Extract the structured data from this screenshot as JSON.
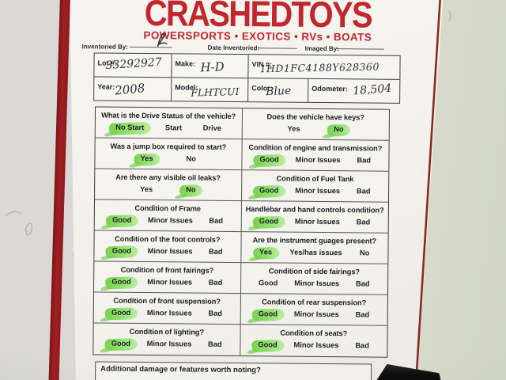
{
  "brand": {
    "logo": "CRASHEDTOYS",
    "tagline": "POWERSPORTS • EXOTICS • RVs • BOATS"
  },
  "meta": {
    "inventoried_by": "Inventoried By:",
    "date_inventoried": "Date Inventoried:",
    "imaged_by": "Imaged By:"
  },
  "info": {
    "lot": {
      "label": "Lot #:",
      "value": "33292927"
    },
    "make": {
      "label": "Make:",
      "value": "H-D"
    },
    "vin": {
      "label": "VIN #:",
      "value": "1HD1FC4188Y628360"
    },
    "year": {
      "label": "Year:",
      "value": "2008"
    },
    "model": {
      "label": "Model:",
      "value": "FLHTCUI"
    },
    "color": {
      "label": "Color:",
      "value": "Blue"
    },
    "odometer": {
      "label": "Odometer:",
      "value": "18,504"
    }
  },
  "questions": [
    {
      "left": {
        "q": "What is the Drive Status of the vehicle?",
        "options": [
          {
            "label": "No Start",
            "hl": true
          },
          {
            "label": "Start",
            "hl": false
          },
          {
            "label": "Drive",
            "hl": false
          }
        ]
      },
      "right": {
        "q": "Does the vehicle have keys?",
        "options": [
          {
            "label": "Yes",
            "hl": false
          },
          {
            "label": "No",
            "hl": true
          }
        ]
      }
    },
    {
      "left": {
        "q": "Was a jump box required to start?",
        "options": [
          {
            "label": "Yes",
            "hl": true
          },
          {
            "label": "No",
            "hl": false
          }
        ]
      },
      "right": {
        "q": "Condition of engine and transmission?",
        "options": [
          {
            "label": "Good",
            "hl": true
          },
          {
            "label": "Minor Issues",
            "hl": false
          },
          {
            "label": "Bad",
            "hl": false
          }
        ]
      }
    },
    {
      "left": {
        "q": "Are there any visible oil leaks?",
        "options": [
          {
            "label": "Yes",
            "hl": false
          },
          {
            "label": "No",
            "hl": true
          }
        ]
      },
      "right": {
        "q": "Condition of Fuel Tank",
        "options": [
          {
            "label": "Good",
            "hl": true
          },
          {
            "label": "Minor Issues",
            "hl": false
          },
          {
            "label": "Bad",
            "hl": false
          }
        ]
      }
    },
    {
      "left": {
        "q": "Condition of Frame",
        "options": [
          {
            "label": "Good",
            "hl": true
          },
          {
            "label": "Minor Issues",
            "hl": false
          },
          {
            "label": "Bad",
            "hl": false
          }
        ]
      },
      "right": {
        "q": "Handlebar and hand controls condition?",
        "options": [
          {
            "label": "Good",
            "hl": true
          },
          {
            "label": "Minor Issues",
            "hl": false
          },
          {
            "label": "Bad",
            "hl": false
          }
        ]
      }
    },
    {
      "left": {
        "q": "Condition of the foot controls?",
        "options": [
          {
            "label": "Good",
            "hl": true
          },
          {
            "label": "Minor Issues",
            "hl": false
          },
          {
            "label": "Bad",
            "hl": false
          }
        ]
      },
      "right": {
        "q": "Are the instrument guages present?",
        "options": [
          {
            "label": "Yes",
            "hl": true
          },
          {
            "label": "Yes/has issues",
            "hl": false
          },
          {
            "label": "No",
            "hl": false
          }
        ]
      }
    },
    {
      "left": {
        "q": "Condition of front fairings?",
        "options": [
          {
            "label": "Good",
            "hl": true
          },
          {
            "label": "Minor Issues",
            "hl": false
          },
          {
            "label": "Bad",
            "hl": false
          }
        ]
      },
      "right": {
        "q": "Condition of side fairings?",
        "options": [
          {
            "label": "Good",
            "hl": false
          },
          {
            "label": "Minor Issues",
            "hl": false
          },
          {
            "label": "Bad",
            "hl": false
          }
        ]
      }
    },
    {
      "left": {
        "q": "Condition of front suspension?",
        "options": [
          {
            "label": "Good",
            "hl": true
          },
          {
            "label": "Minor Issues",
            "hl": false
          },
          {
            "label": "Bad",
            "hl": false
          }
        ]
      },
      "right": {
        "q": "Condition of rear suspension?",
        "options": [
          {
            "label": "Good",
            "hl": true
          },
          {
            "label": "Minor Issues",
            "hl": false
          },
          {
            "label": "Bad",
            "hl": false
          }
        ]
      }
    },
    {
      "left": {
        "q": "Condition of lighting?",
        "options": [
          {
            "label": "Good",
            "hl": true
          },
          {
            "label": "Minor Issues",
            "hl": false
          },
          {
            "label": "Bad",
            "hl": false
          }
        ]
      },
      "right": {
        "q": "Condition of seats?",
        "options": [
          {
            "label": "Good",
            "hl": true
          },
          {
            "label": "Minor Issues",
            "hl": false
          },
          {
            "label": "Bad",
            "hl": false
          }
        ]
      }
    }
  ],
  "additional": {
    "label": "Additional damage or features worth noting?"
  },
  "colors": {
    "brand_red": "#c1272d",
    "frame_red": "#9e2024",
    "edge_red": "#7e1a16",
    "highlight": "#8adf64",
    "pen": "#2e2e36",
    "paper": "#f3f1ea",
    "wall_gray": "#d8d7d2",
    "wall_green": "#d5d9c7",
    "black_object": "#1a1a1a"
  }
}
